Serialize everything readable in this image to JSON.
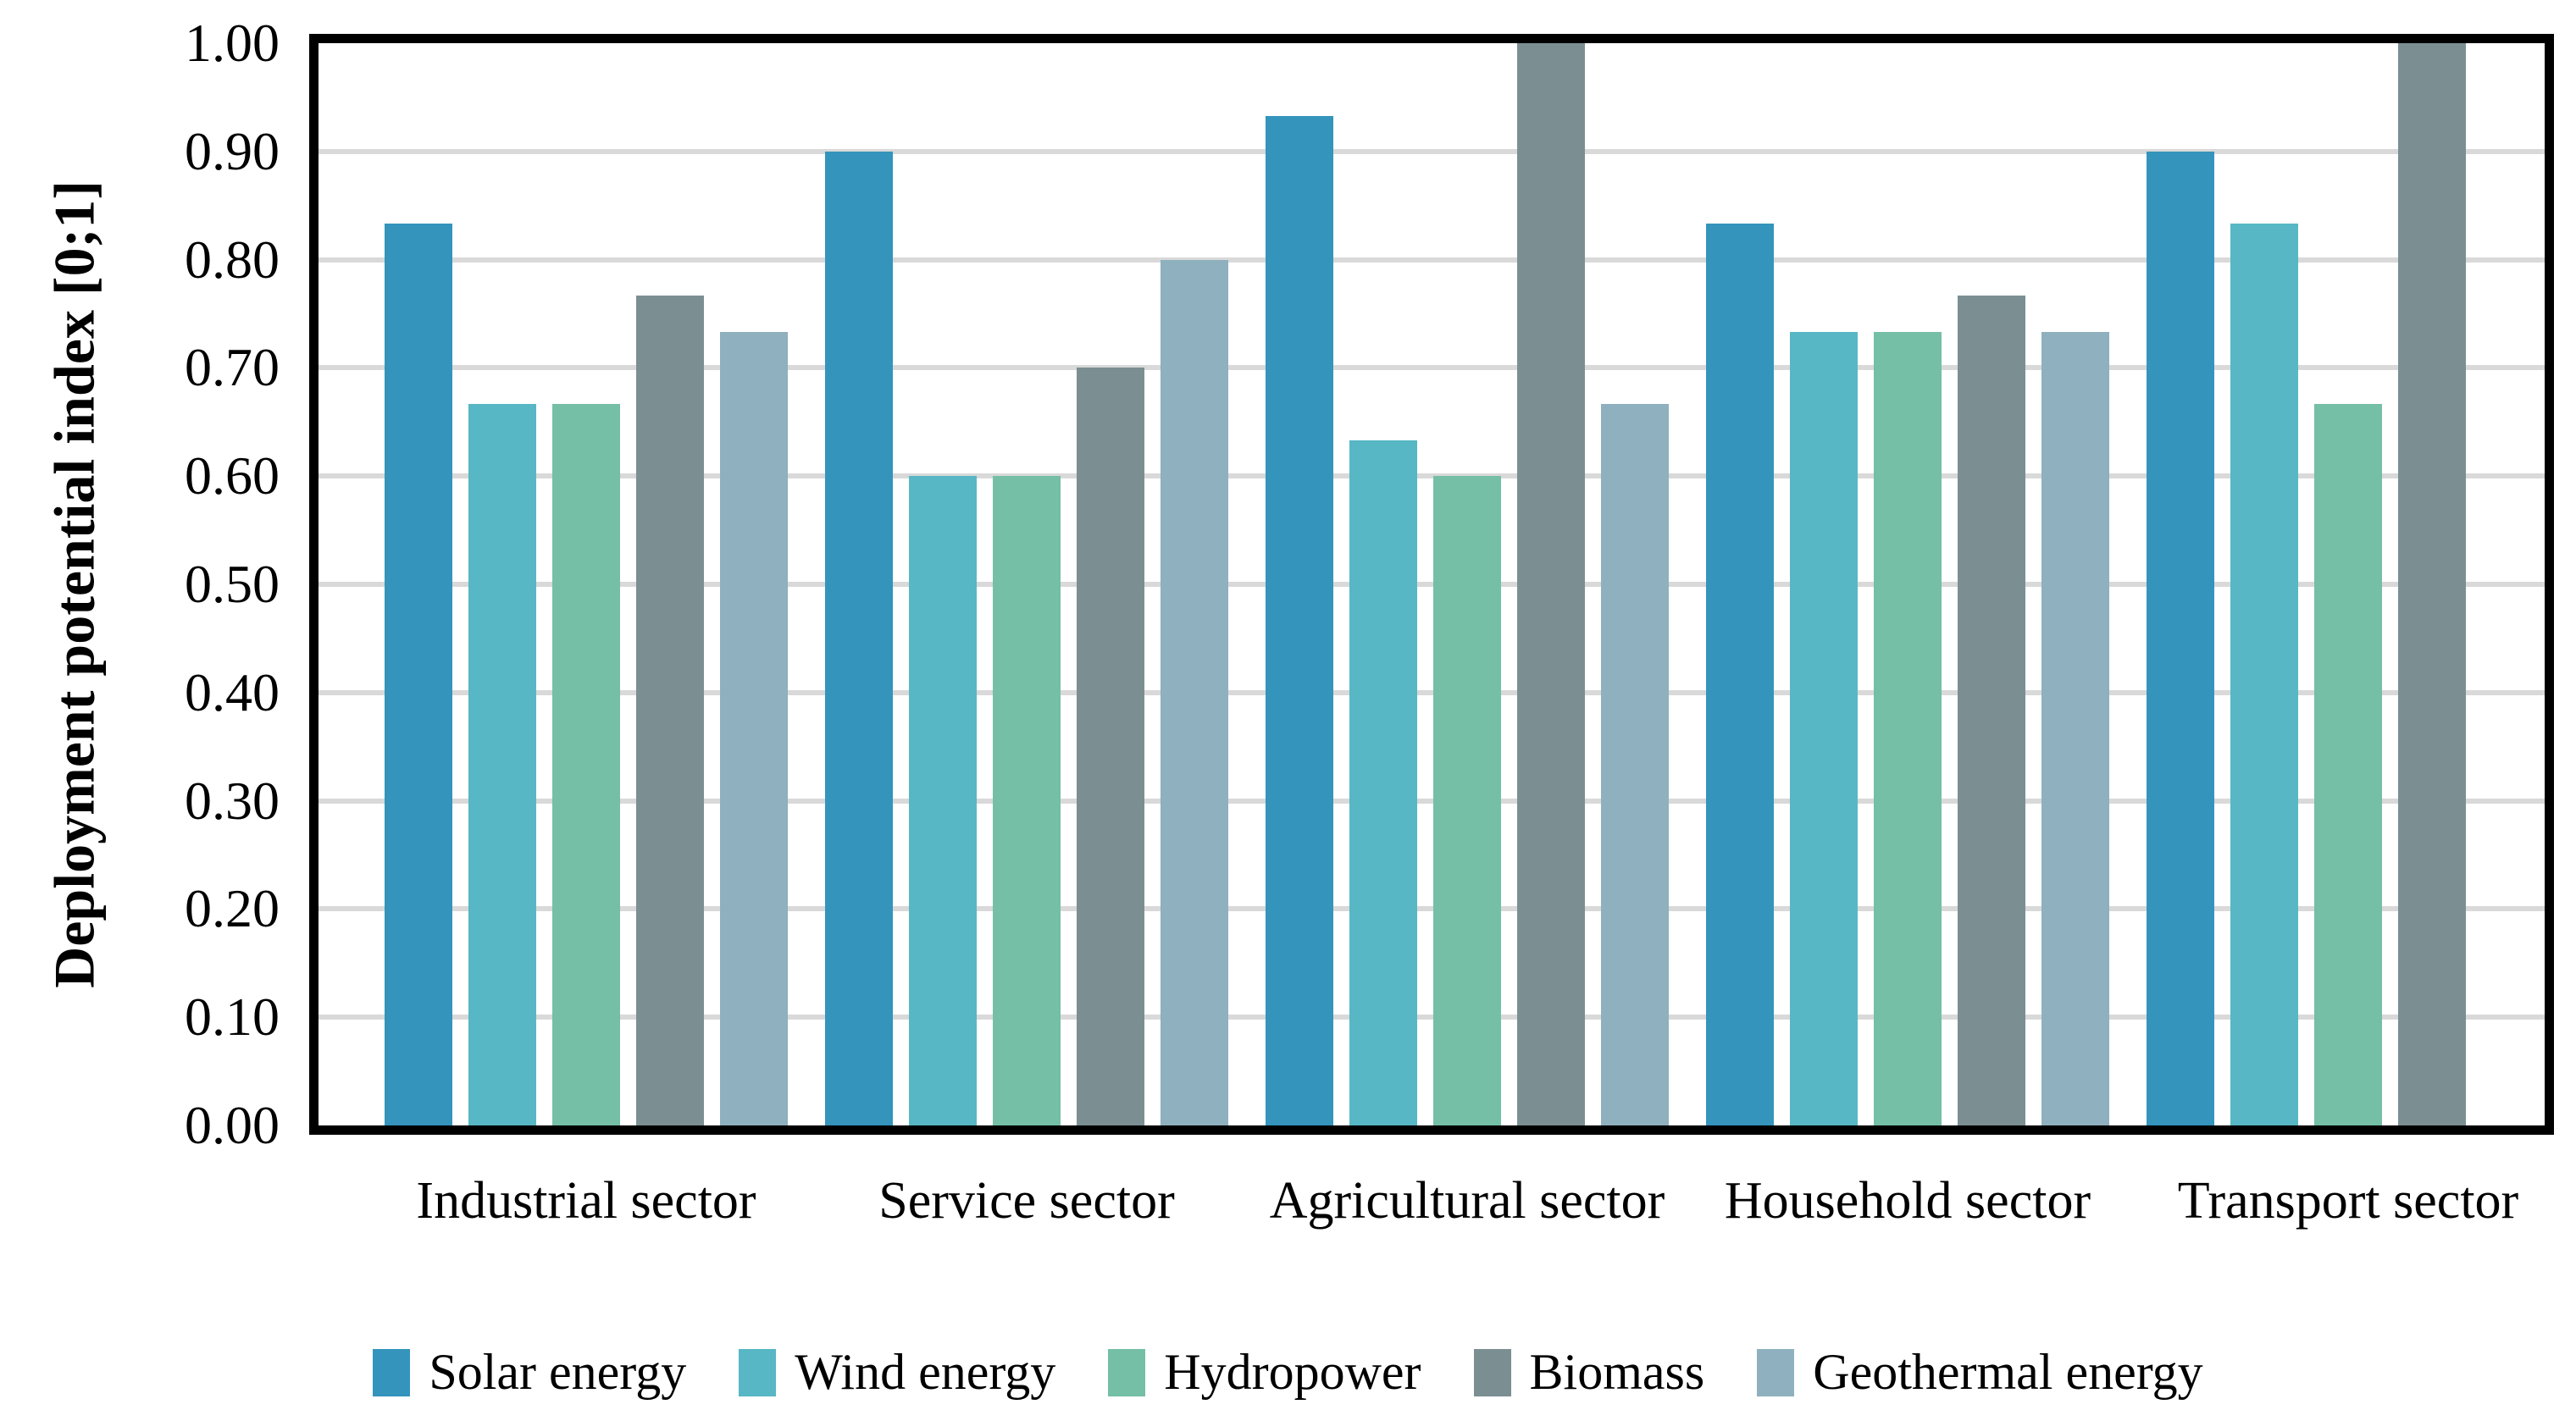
{
  "chart_data": {
    "type": "bar",
    "title": "",
    "xlabel": "",
    "ylabel": "Deployment potential index [0;1]",
    "ylim": [
      0.0,
      1.0
    ],
    "ytick_step": 0.1,
    "ytick_labels": [
      "0.00",
      "0.10",
      "0.20",
      "0.30",
      "0.40",
      "0.50",
      "0.60",
      "0.70",
      "0.80",
      "0.90",
      "1.00"
    ],
    "grid": "horizontal-gridlines-on",
    "gridline_color": "#d9d9d9",
    "plot_border_color": "#000000",
    "legend_position": "bottom",
    "categories": [
      "Industrial sector",
      "Service sector",
      "Agricultural sector",
      "Household sector",
      "Transport sector"
    ],
    "series": [
      {
        "name": "Solar energy",
        "color": "#3494bc",
        "values": [
          0.833,
          0.9,
          0.933,
          0.833,
          0.9
        ]
      },
      {
        "name": "Wind energy",
        "color": "#57b7c4",
        "values": [
          0.667,
          0.6,
          0.633,
          0.733,
          0.833
        ]
      },
      {
        "name": "Hydropower",
        "color": "#74bfa5",
        "values": [
          0.667,
          0.6,
          0.6,
          0.733,
          0.667
        ]
      },
      {
        "name": "Biomass",
        "color": "#7b8f93",
        "values": [
          0.767,
          0.7,
          1.0,
          0.767,
          1.0
        ]
      },
      {
        "name": "Geothermal energy",
        "color": "#8fb0be",
        "values": [
          0.733,
          0.8,
          0.667,
          0.733,
          0.0
        ]
      }
    ]
  }
}
